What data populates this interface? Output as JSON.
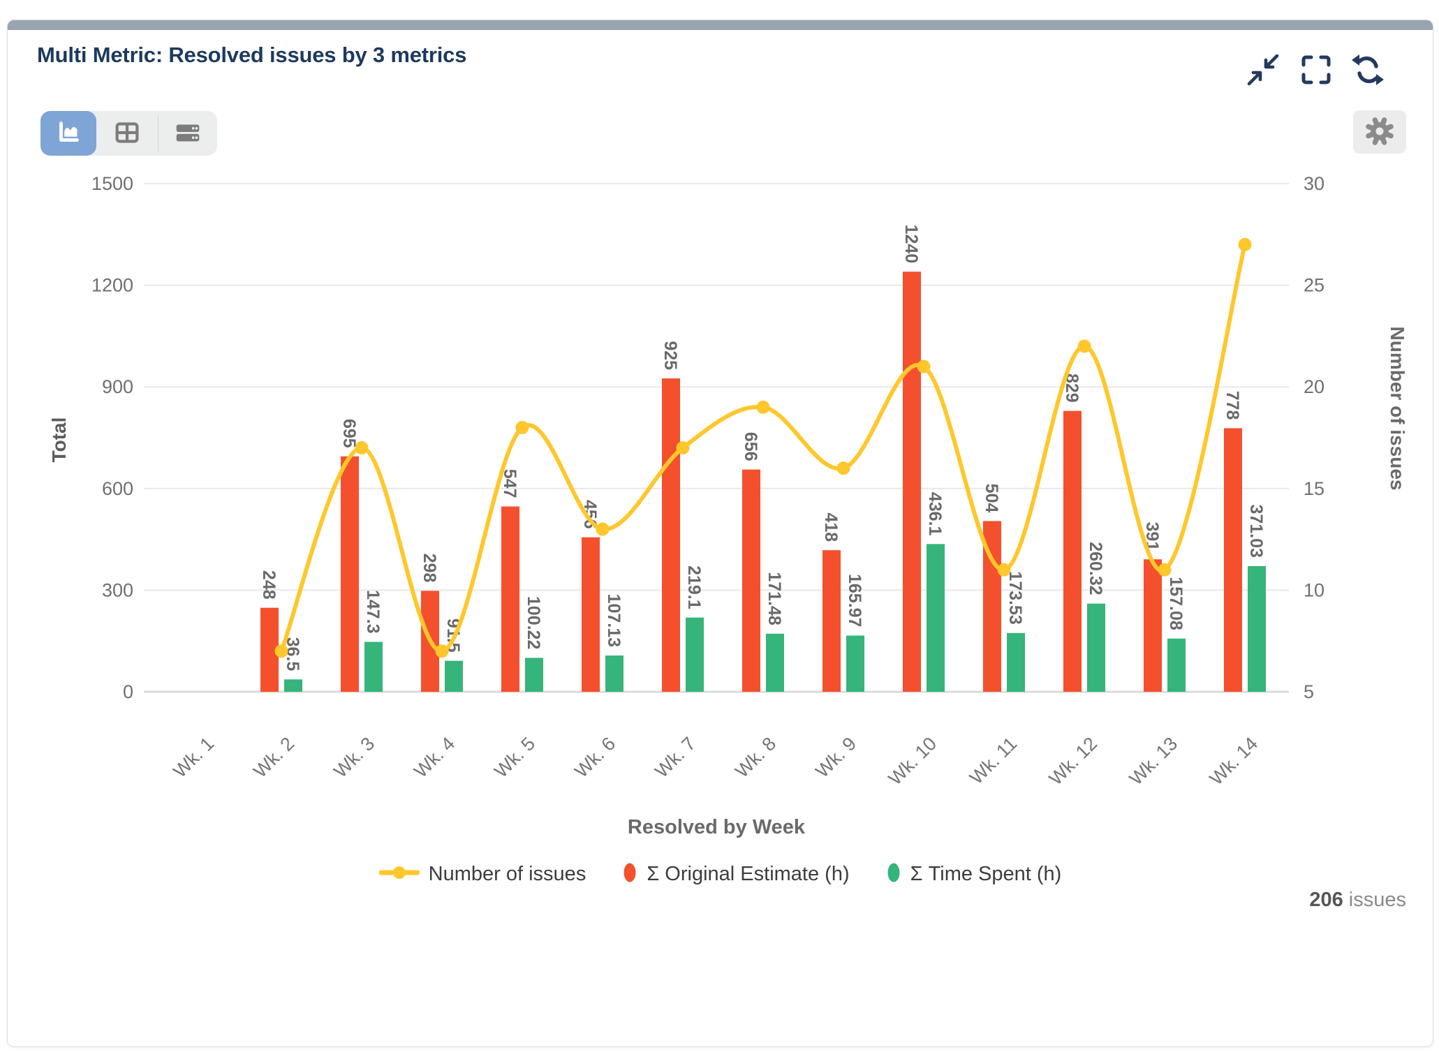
{
  "window": {
    "title": "Multi Metric: Resolved issues by 3 metrics"
  },
  "toolbar": {
    "active_view": "chart",
    "views": [
      "chart",
      "table",
      "list"
    ]
  },
  "chart_data": {
    "type": "combo",
    "categories": [
      "Wk. 1",
      "Wk. 2",
      "Wk. 3",
      "Wk. 4",
      "Wk. 5",
      "Wk. 6",
      "Wk. 7",
      "Wk. 8",
      "Wk. 9",
      "Wk. 10",
      "Wk. 11",
      "Wk. 12",
      "Wk. 13",
      "Wk. 14"
    ],
    "series": [
      {
        "name": "Number of issues",
        "type": "line",
        "axis": "right",
        "color": "#FFC72C",
        "values": [
          null,
          7,
          17,
          7,
          18,
          13,
          17,
          19,
          16,
          21,
          11,
          22,
          11,
          27
        ]
      },
      {
        "name": "Σ Original Estimate (h)",
        "type": "bar",
        "axis": "left",
        "color": "#F4502D",
        "values": [
          null,
          248,
          695,
          298,
          547,
          456,
          925,
          656,
          418,
          1240,
          504,
          829,
          391,
          778
        ]
      },
      {
        "name": "Σ Time Spent (h)",
        "type": "bar",
        "axis": "left",
        "color": "#35B47B",
        "values": [
          null,
          36.5,
          147.3,
          91.5,
          100.22,
          107.13,
          219.1,
          171.48,
          165.97,
          436.1,
          173.53,
          260.32,
          157.08,
          371.03
        ]
      }
    ],
    "xlabel": "Resolved by Week",
    "left_axis": {
      "title": "Total",
      "min": 0,
      "max": 1500,
      "ticks": [
        0,
        300,
        600,
        900,
        1200,
        1500
      ]
    },
    "right_axis": {
      "title": "Number of issues",
      "min": 5,
      "max": 30,
      "ticks": [
        5,
        10,
        15,
        20,
        25,
        30
      ]
    },
    "legend_position": "bottom",
    "grid": "horizontal"
  },
  "footer": {
    "count": "206",
    "label": "issues"
  },
  "colors": {
    "accent_blue": "#7FA5D6",
    "title_navy": "#1D3A5F",
    "header_strip": "#9AA3B0",
    "orange": "#F4502D",
    "green": "#35B47B",
    "yellow": "#FFC72C"
  }
}
